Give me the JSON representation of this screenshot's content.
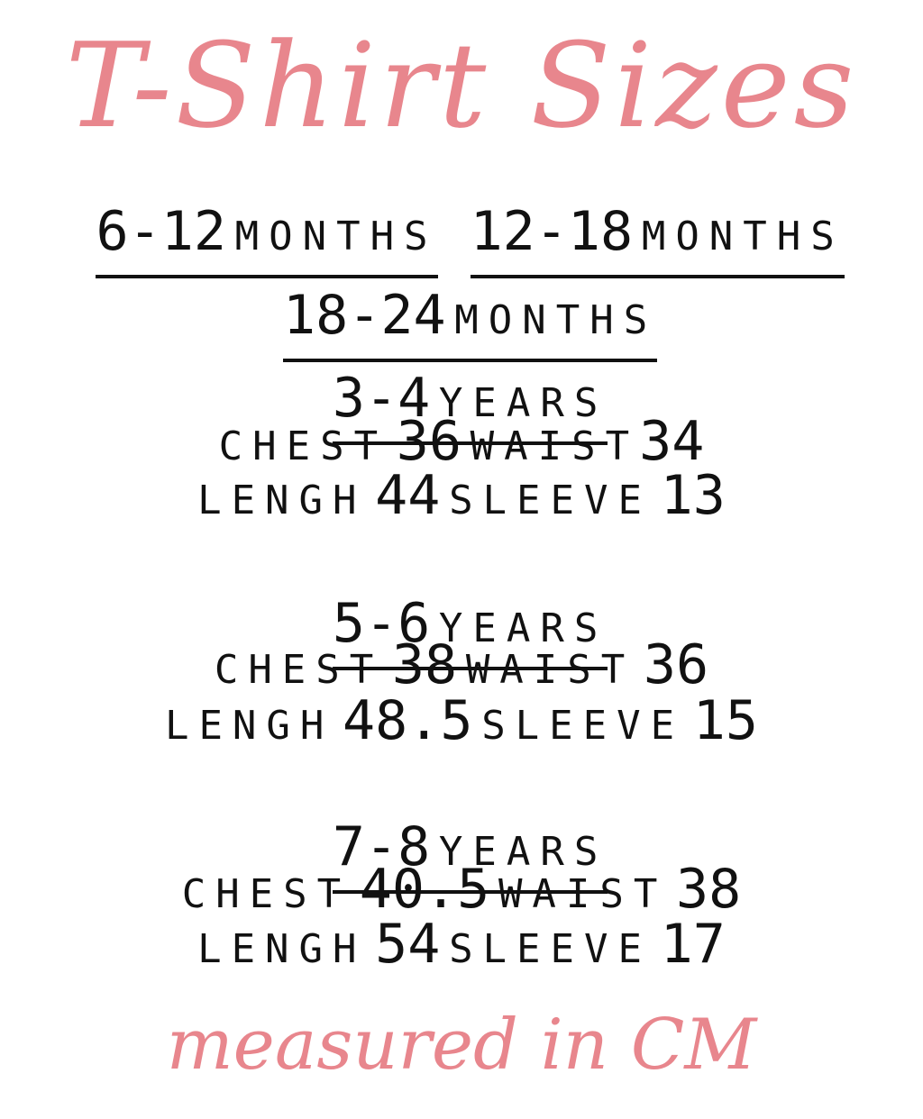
{
  "title": "T-Shirt Sizes",
  "footer": "measured in CM",
  "labels": {
    "chest": "CHEST",
    "waist": "WAIST",
    "length": "LENGH",
    "sleeve": "SLEEVE"
  },
  "month_ranges": [
    {
      "range": "6-12",
      "unit": "MONTHS"
    },
    {
      "range": "12-18",
      "unit": "MONTHS"
    },
    {
      "range": "18-24",
      "unit": "MONTHS"
    }
  ],
  "sizes": [
    {
      "range": "3-4",
      "unit": "YEARS",
      "chest": "36",
      "waist": "34",
      "length": "44",
      "sleeve": "13"
    },
    {
      "range": "5-6",
      "unit": "YEARS",
      "chest": "38",
      "waist": "36",
      "length": "48.5",
      "sleeve": "15"
    },
    {
      "range": "7-8",
      "unit": "YEARS",
      "chest": "40.5",
      "waist": "38",
      "length": "54",
      "sleeve": "17"
    }
  ],
  "colors": {
    "accent": "#e8868d",
    "text": "#111111"
  }
}
